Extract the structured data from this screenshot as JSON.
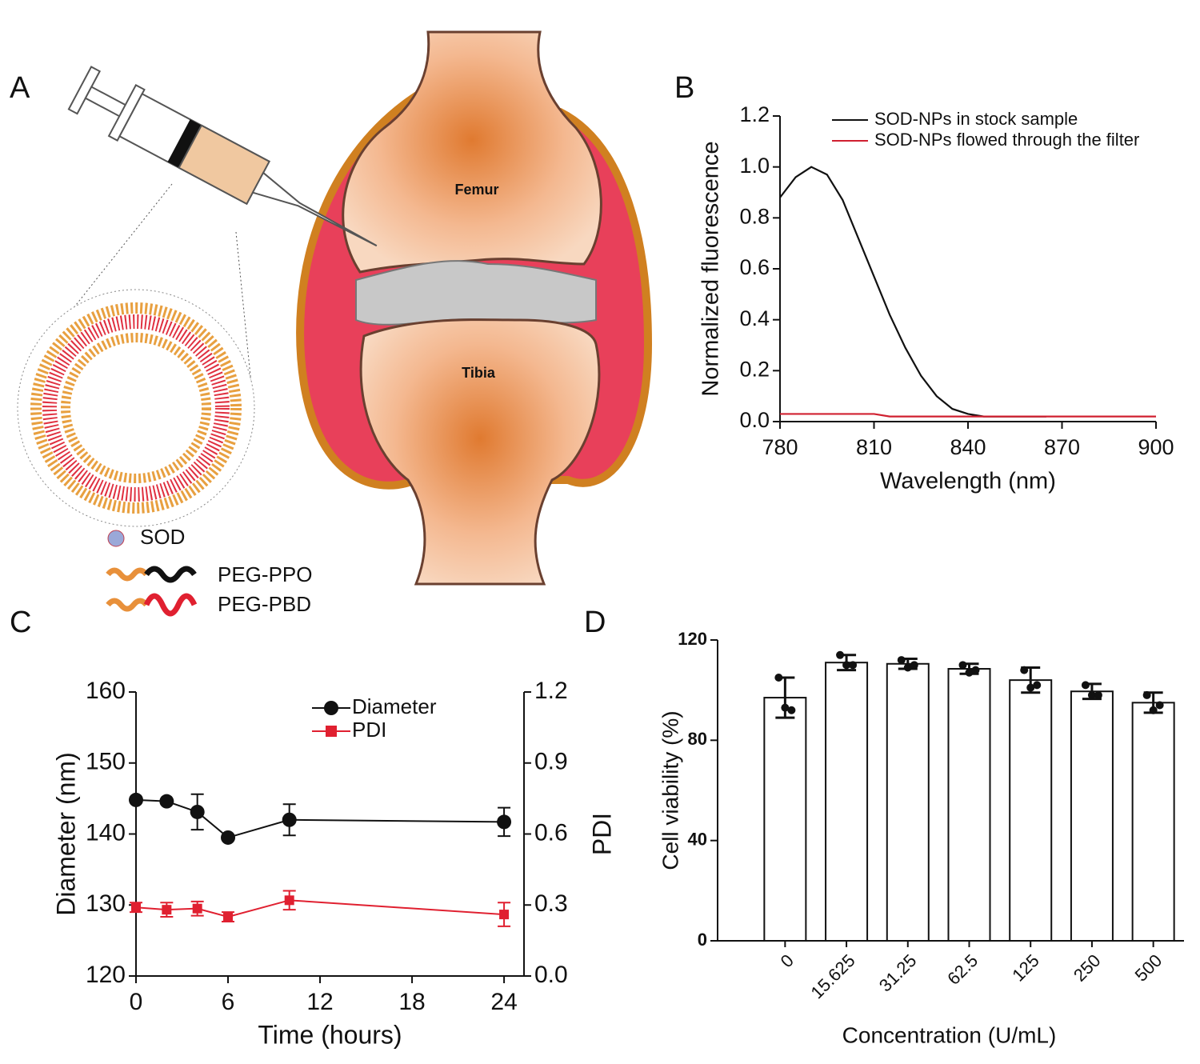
{
  "diagram": {
    "panel_label": "A",
    "bone_top": "Femur",
    "bone_bottom": "Tibia",
    "legend": [
      "SOD",
      "PEG-PPO",
      "PEG-PBD"
    ]
  },
  "chart_data": [
    {
      "type": "line",
      "panel_label": "B",
      "x_label": "Wavelength (nm)",
      "y_label": "Normalized fluorescence",
      "x": [
        780,
        785,
        790,
        795,
        800,
        805,
        810,
        815,
        820,
        825,
        830,
        835,
        840,
        845,
        850,
        855,
        860,
        865,
        870,
        875,
        880,
        885,
        890,
        895,
        900
      ],
      "series": [
        {
          "name": "SOD-NPs in stock sample",
          "color": "#111111",
          "values": [
            0.88,
            0.96,
            1.0,
            0.97,
            0.87,
            0.72,
            0.57,
            0.42,
            0.29,
            0.18,
            0.1,
            0.05,
            0.03,
            0.02,
            0.02,
            0.02,
            0.02,
            0.02,
            null,
            null,
            null,
            null,
            null,
            null,
            null
          ]
        },
        {
          "name": "SOD-NPs flowed through the filter",
          "color": "#d02030",
          "values": [
            0.03,
            0.03,
            0.03,
            0.03,
            0.03,
            0.03,
            0.03,
            0.02,
            0.02,
            0.02,
            0.02,
            0.02,
            0.02,
            0.02,
            0.02,
            0.02,
            0.02,
            0.02,
            0.02,
            0.02,
            0.02,
            0.02,
            0.02,
            0.02,
            0.02
          ]
        }
      ],
      "xlim": [
        780,
        900
      ],
      "xticks": [
        780,
        810,
        840,
        870,
        900
      ],
      "ylim": [
        0,
        1.2
      ],
      "yticks": [
        {
          "value": 0,
          "label": "0.0"
        },
        {
          "value": 0.2,
          "label": "0.2"
        },
        {
          "value": 0.4,
          "label": "0.4"
        },
        {
          "value": 0.6,
          "label": "0.6"
        },
        {
          "value": 0.8,
          "label": "0.8"
        },
        {
          "value": 1,
          "label": "1.0"
        },
        {
          "value": 1.2,
          "label": "1.2"
        }
      ],
      "legend": "upper right"
    },
    {
      "type": "line",
      "panel_label": "C",
      "x_label": "Time (hours)",
      "y_label": "Diameter (nm)",
      "y2_label": "PDI",
      "x": [
        0,
        2,
        4,
        6,
        10,
        24
      ],
      "series": [
        {
          "name": "Diameter",
          "color": "#111111",
          "marker": "circle",
          "values": [
            144.8,
            144.6,
            143.1,
            139.5,
            142.0,
            141.7
          ],
          "errors": [
            0.3,
            0.3,
            2.5,
            0.3,
            2.2,
            2.0
          ]
        },
        {
          "name": "PDI",
          "color": "#e02030",
          "marker": "square",
          "axis": "y2",
          "values": [
            0.29,
            0.28,
            0.285,
            0.25,
            0.32,
            0.26
          ],
          "errors": [
            0.02,
            0.03,
            0.03,
            0.02,
            0.04,
            0.05
          ]
        }
      ],
      "xlim": [
        0,
        25.3
      ],
      "xticks": [
        0,
        6,
        12,
        18,
        24
      ],
      "ylim": [
        120,
        160
      ],
      "yticks": [
        120,
        130,
        140,
        150,
        160
      ],
      "y2lim": [
        0,
        1.2
      ],
      "y2ticks": [
        {
          "value": 0,
          "label": "0.0"
        },
        {
          "value": 0.3,
          "label": "0.3"
        },
        {
          "value": 0.6,
          "label": "0.6"
        },
        {
          "value": 0.9,
          "label": "0.9"
        },
        {
          "value": 1.2,
          "label": "1.2"
        }
      ],
      "legend": "upper center"
    },
    {
      "type": "bar",
      "panel_label": "D",
      "x_label": "Concentration (U/mL)",
      "y_label": "Cell viability (%)",
      "categories": [
        "0",
        "15.625",
        "31.25",
        "62.5",
        "125",
        "250",
        "500"
      ],
      "values": [
        97,
        111,
        110.5,
        108.5,
        104,
        99.5,
        95
      ],
      "errors": [
        8,
        3,
        2,
        2,
        5,
        3,
        4
      ],
      "points": [
        [
          105,
          93,
          92
        ],
        [
          114,
          110,
          110
        ],
        [
          112,
          109,
          110
        ],
        [
          110,
          107,
          108
        ],
        [
          108,
          101,
          102
        ],
        [
          102,
          98,
          98
        ],
        [
          98,
          92,
          94
        ]
      ],
      "color": "#ffffff",
      "edge_color": "#111111",
      "ylim": [
        0,
        120
      ],
      "yticks": [
        0,
        40,
        80,
        120
      ]
    }
  ]
}
